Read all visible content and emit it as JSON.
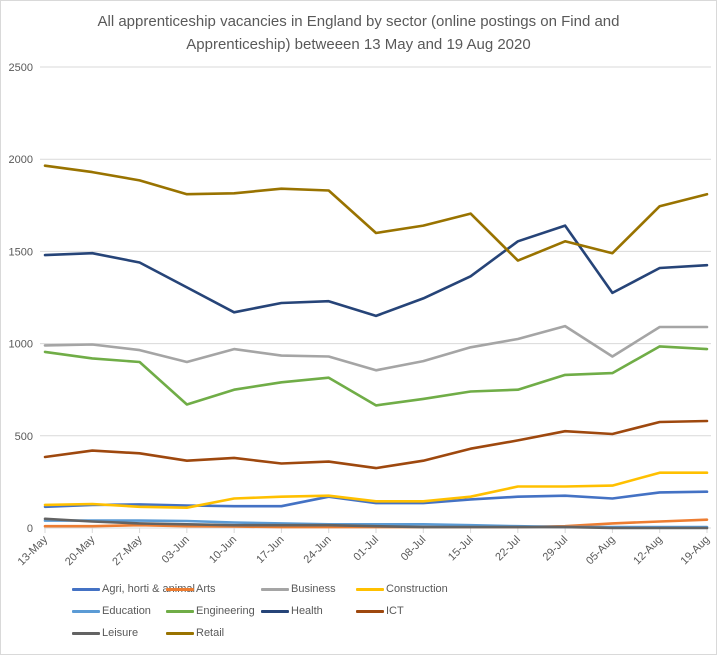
{
  "chart_data": {
    "type": "line",
    "title_lines": [
      "All apprenticeship vacancies in England by sector (online postings on Find and",
      "Apprenticeship) betweeen 13 May and 19 Aug 2020"
    ],
    "xlabel": "",
    "ylabel": "",
    "ylim": [
      0,
      2500
    ],
    "yticks": [
      "0",
      "500",
      "1000",
      "1500",
      "2000",
      "2500"
    ],
    "ytick_values": [
      0,
      500,
      1000,
      1500,
      2000,
      2500
    ],
    "grid": true,
    "legend_position": "bottom",
    "categories": [
      "13-May",
      "20-May",
      "27-May",
      "03-Jun",
      "10-Jun",
      "17-Jun",
      "24-Jun",
      "01-Jul",
      "08-Jul",
      "15-Jul",
      "22-Jul",
      "29-Jul",
      "05-Aug",
      "12-Aug",
      "19-Aug"
    ],
    "series": [
      {
        "name": "Agri, horti & animal",
        "color": "#4472c4",
        "values": [
          115,
          125,
          128,
          122,
          118,
          118,
          170,
          135,
          135,
          155,
          170,
          175,
          160,
          193,
          197
        ]
      },
      {
        "name": "Arts",
        "color": "#ed7d31",
        "values": [
          10,
          10,
          15,
          10,
          8,
          5,
          5,
          5,
          5,
          5,
          5,
          10,
          25,
          35,
          45
        ]
      },
      {
        "name": "Business",
        "color": "#a5a5a5",
        "values": [
          990,
          995,
          965,
          900,
          970,
          935,
          930,
          855,
          905,
          980,
          1025,
          1095,
          930,
          1090,
          1090
        ]
      },
      {
        "name": "Construction",
        "color": "#ffc000",
        "values": [
          125,
          130,
          115,
          110,
          160,
          170,
          175,
          145,
          145,
          170,
          225,
          225,
          230,
          300,
          300
        ]
      },
      {
        "name": "Education",
        "color": "#5b9bd5",
        "values": [
          40,
          40,
          40,
          38,
          30,
          25,
          20,
          20,
          20,
          15,
          10,
          5,
          5,
          5,
          5
        ]
      },
      {
        "name": "Engineering",
        "color": "#70ad47",
        "values": [
          955,
          920,
          900,
          670,
          750,
          790,
          815,
          665,
          700,
          740,
          750,
          830,
          840,
          985,
          970
        ]
      },
      {
        "name": "Health",
        "color": "#264478",
        "values": [
          1480,
          1490,
          1440,
          1305,
          1170,
          1220,
          1230,
          1150,
          1245,
          1365,
          1555,
          1640,
          1275,
          1410,
          1425
        ]
      },
      {
        "name": "ICT",
        "color": "#9e480e",
        "values": [
          385,
          420,
          405,
          365,
          380,
          350,
          360,
          325,
          365,
          430,
          475,
          525,
          510,
          575,
          580
        ]
      },
      {
        "name": "Leisure",
        "color": "#636363",
        "values": [
          50,
          35,
          25,
          20,
          15,
          15,
          15,
          10,
          5,
          5,
          5,
          5,
          0,
          0,
          0
        ]
      },
      {
        "name": "Retail",
        "color": "#997300",
        "values": [
          1965,
          1930,
          1885,
          1810,
          1815,
          1840,
          1830,
          1600,
          1640,
          1705,
          1450,
          1555,
          1490,
          1745,
          1810
        ]
      }
    ]
  }
}
